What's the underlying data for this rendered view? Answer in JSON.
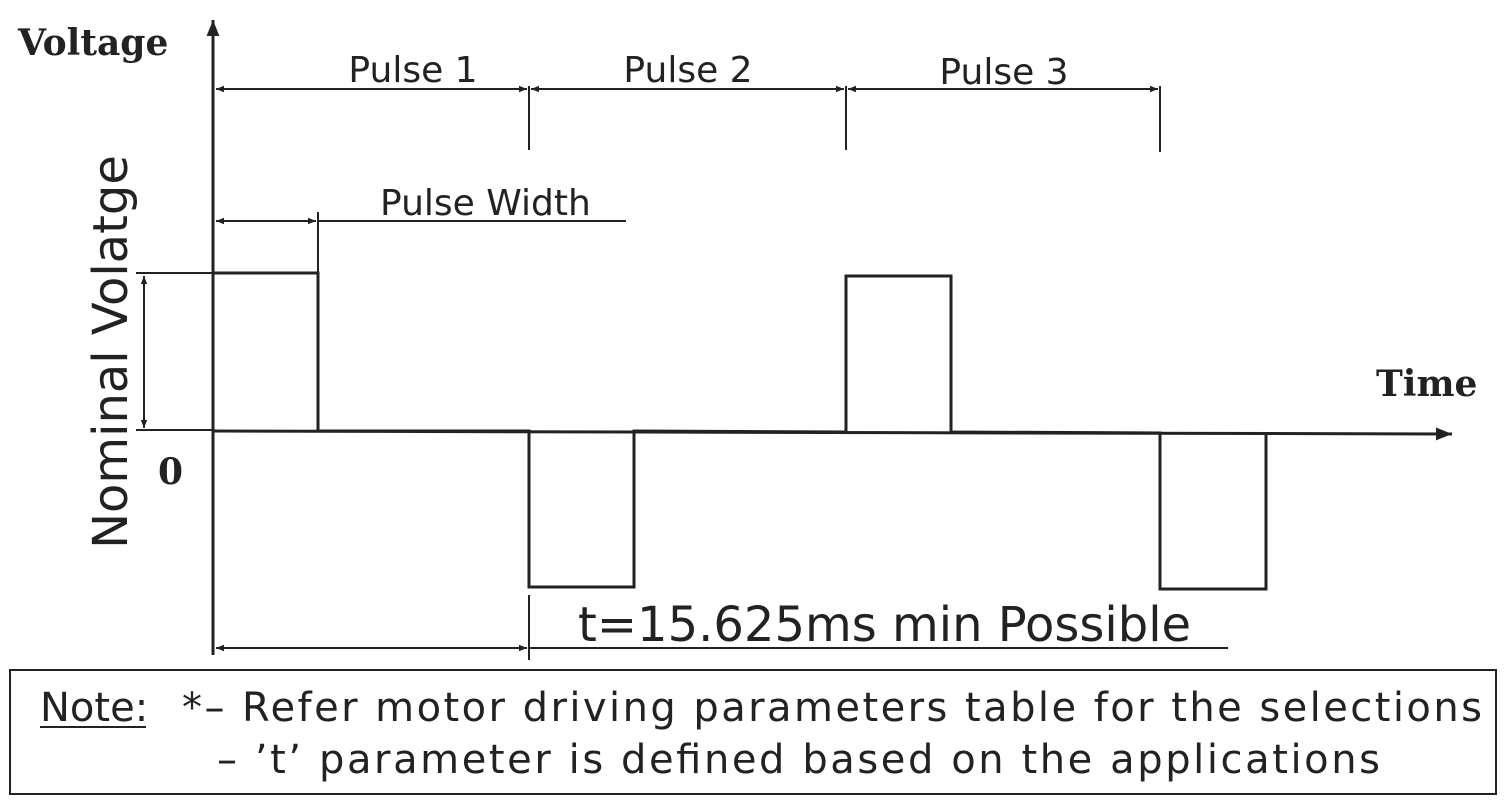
{
  "axes": {
    "y_label": "Voltage",
    "x_label": "Time",
    "zero_label": "0",
    "amplitude_label": "Nominal Volatge"
  },
  "pulses": {
    "labels": [
      "Pulse 1",
      "Pulse 2",
      "Pulse 3"
    ],
    "width_label": "Pulse Width",
    "period_label": "t=15.625ms min Possible"
  },
  "note": {
    "prefix": "Note:",
    "line1": "*– Refer motor driving parameters table for the selections",
    "line2": "– ’t’ parameter is defined based on the applications"
  },
  "colors": {
    "ink": "#222222",
    "background": "#ffffff"
  }
}
